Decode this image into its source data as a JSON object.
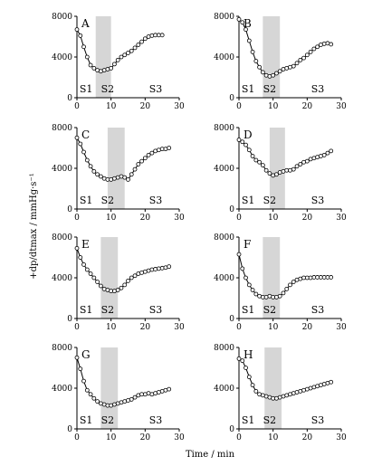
{
  "figure": {
    "y_axis_label": "+dp/dtmax / mmHg·s⁻¹",
    "x_axis_label": "Time / min"
  },
  "chart_data": [
    {
      "type": "line",
      "panel": "A",
      "xlim": [
        0,
        30
      ],
      "ylim": [
        0,
        8000
      ],
      "xticks": [
        0,
        10,
        20,
        30
      ],
      "yticks": [
        0,
        4000,
        8000
      ],
      "shaded_x": [
        5.5,
        10
      ],
      "stages": [
        "S1",
        "S2",
        "S3"
      ],
      "x": [
        0,
        1,
        2,
        3,
        4,
        5,
        6,
        7,
        8,
        9,
        10,
        11,
        12,
        13,
        14,
        15,
        16,
        17,
        18,
        19,
        20,
        21,
        22,
        23,
        24,
        25
      ],
      "values": [
        6700,
        6100,
        5000,
        4000,
        3200,
        2900,
        2700,
        2600,
        2700,
        2800,
        2900,
        3300,
        3700,
        4000,
        4200,
        4400,
        4600,
        4900,
        5200,
        5500,
        5800,
        6000,
        6100,
        6150,
        6150,
        6150
      ]
    },
    {
      "type": "line",
      "panel": "B",
      "xlim": [
        0,
        30
      ],
      "ylim": [
        0,
        8000
      ],
      "xticks": [
        0,
        10,
        20,
        30
      ],
      "yticks": [
        0,
        4000,
        8000
      ],
      "shaded_x": [
        7,
        12
      ],
      "stages": [
        "S1",
        "S2",
        "S3"
      ],
      "x": [
        0,
        1,
        2,
        3,
        4,
        5,
        6,
        7,
        8,
        9,
        10,
        11,
        12,
        13,
        14,
        15,
        16,
        17,
        18,
        19,
        20,
        21,
        22,
        23,
        24,
        25,
        26,
        27
      ],
      "values": [
        7700,
        7400,
        6700,
        5600,
        4500,
        3600,
        3000,
        2500,
        2200,
        2100,
        2200,
        2400,
        2600,
        2800,
        2900,
        3000,
        3100,
        3400,
        3700,
        3900,
        4200,
        4500,
        4800,
        5000,
        5200,
        5300,
        5350,
        5250
      ]
    },
    {
      "type": "line",
      "panel": "C",
      "xlim": [
        0,
        30
      ],
      "ylim": [
        0,
        8000
      ],
      "xticks": [
        0,
        10,
        20,
        30
      ],
      "yticks": [
        0,
        4000,
        8000
      ],
      "shaded_x": [
        9,
        14
      ],
      "stages": [
        "S1",
        "S2",
        "S3"
      ],
      "x": [
        0,
        1,
        2,
        3,
        4,
        5,
        6,
        7,
        8,
        9,
        10,
        11,
        12,
        13,
        14,
        15,
        16,
        17,
        18,
        19,
        20,
        21,
        22,
        23,
        24,
        25,
        26,
        27
      ],
      "values": [
        7000,
        6400,
        5600,
        4800,
        4200,
        3700,
        3400,
        3200,
        3000,
        2900,
        2900,
        3000,
        3100,
        3200,
        3100,
        2900,
        3400,
        3900,
        4400,
        4700,
        5000,
        5300,
        5500,
        5700,
        5800,
        5900,
        5900,
        6000
      ]
    },
    {
      "type": "line",
      "panel": "D",
      "xlim": [
        0,
        30
      ],
      "ylim": [
        0,
        8000
      ],
      "xticks": [
        0,
        10,
        20,
        30
      ],
      "yticks": [
        0,
        4000,
        8000
      ],
      "shaded_x": [
        9,
        13.5
      ],
      "stages": [
        "S1",
        "S2",
        "S3"
      ],
      "x": [
        0,
        1,
        2,
        3,
        4,
        5,
        6,
        7,
        8,
        9,
        10,
        11,
        12,
        13,
        14,
        15,
        16,
        17,
        18,
        19,
        20,
        21,
        22,
        23,
        24,
        25,
        26,
        27
      ],
      "values": [
        6800,
        6600,
        6300,
        5800,
        5200,
        4800,
        4600,
        4300,
        3800,
        3500,
        3300,
        3400,
        3600,
        3700,
        3800,
        3800,
        3900,
        4200,
        4400,
        4600,
        4700,
        4900,
        5000,
        5100,
        5200,
        5300,
        5500,
        5700
      ]
    },
    {
      "type": "line",
      "panel": "E",
      "xlim": [
        0,
        30
      ],
      "ylim": [
        0,
        8000
      ],
      "xticks": [
        0,
        10,
        20,
        30
      ],
      "yticks": [
        0,
        4000,
        8000
      ],
      "shaded_x": [
        7,
        12
      ],
      "stages": [
        "S1",
        "S2",
        "S3"
      ],
      "x": [
        0,
        1,
        2,
        3,
        4,
        5,
        6,
        7,
        8,
        9,
        10,
        11,
        12,
        13,
        14,
        15,
        16,
        17,
        18,
        19,
        20,
        21,
        22,
        23,
        24,
        25,
        26,
        27
      ],
      "values": [
        6900,
        6000,
        5300,
        4800,
        4400,
        4000,
        3600,
        3200,
        2900,
        2800,
        2700,
        2700,
        2800,
        3000,
        3300,
        3700,
        4000,
        4200,
        4400,
        4500,
        4600,
        4700,
        4800,
        4850,
        4900,
        4950,
        5000,
        5100
      ]
    },
    {
      "type": "line",
      "panel": "F",
      "xlim": [
        0,
        30
      ],
      "ylim": [
        0,
        8000
      ],
      "xticks": [
        0,
        10,
        20,
        30
      ],
      "yticks": [
        0,
        4000,
        8000
      ],
      "shaded_x": [
        7,
        12
      ],
      "stages": [
        "S1",
        "S2",
        "S3"
      ],
      "x": [
        0,
        1,
        2,
        3,
        4,
        5,
        6,
        7,
        8,
        9,
        10,
        11,
        12,
        13,
        14,
        15,
        16,
        17,
        18,
        19,
        20,
        21,
        22,
        23,
        24,
        25,
        26,
        27
      ],
      "values": [
        6300,
        4900,
        4000,
        3300,
        2800,
        2400,
        2200,
        2100,
        2100,
        2200,
        2100,
        2100,
        2200,
        2500,
        2900,
        3300,
        3600,
        3800,
        3900,
        4000,
        4000,
        4000,
        4050,
        4050,
        4050,
        4050,
        4050,
        4050
      ]
    },
    {
      "type": "line",
      "panel": "G",
      "xlim": [
        0,
        30
      ],
      "ylim": [
        0,
        8000
      ],
      "xticks": [
        0,
        10,
        20,
        30
      ],
      "yticks": [
        0,
        4000,
        8000
      ],
      "shaded_x": [
        7,
        12
      ],
      "stages": [
        "S1",
        "S2",
        "S3"
      ],
      "x": [
        0,
        1,
        2,
        3,
        4,
        5,
        6,
        7,
        8,
        9,
        10,
        11,
        12,
        13,
        14,
        15,
        16,
        17,
        18,
        19,
        20,
        21,
        22,
        23,
        24,
        25,
        26,
        27
      ],
      "values": [
        7000,
        5900,
        4700,
        3800,
        3400,
        3000,
        2700,
        2500,
        2400,
        2300,
        2300,
        2400,
        2500,
        2600,
        2700,
        2800,
        2900,
        3100,
        3300,
        3400,
        3400,
        3500,
        3400,
        3500,
        3600,
        3700,
        3800,
        3900
      ]
    },
    {
      "type": "line",
      "panel": "H",
      "xlim": [
        0,
        30
      ],
      "ylim": [
        0,
        8000
      ],
      "xticks": [
        0,
        10,
        20,
        30
      ],
      "yticks": [
        0,
        4000,
        8000
      ],
      "shaded_x": [
        7.5,
        12.5
      ],
      "stages": [
        "S1",
        "S2",
        "S3"
      ],
      "x": [
        0,
        1,
        2,
        3,
        4,
        5,
        6,
        7,
        8,
        9,
        10,
        11,
        12,
        13,
        14,
        15,
        16,
        17,
        18,
        19,
        20,
        21,
        22,
        23,
        24,
        25,
        26,
        27
      ],
      "values": [
        6900,
        6700,
        6000,
        5100,
        4300,
        3700,
        3400,
        3300,
        3200,
        3100,
        3000,
        3000,
        3100,
        3200,
        3300,
        3400,
        3500,
        3600,
        3700,
        3800,
        3900,
        4000,
        4100,
        4200,
        4300,
        4400,
        4500,
        4600
      ]
    }
  ]
}
